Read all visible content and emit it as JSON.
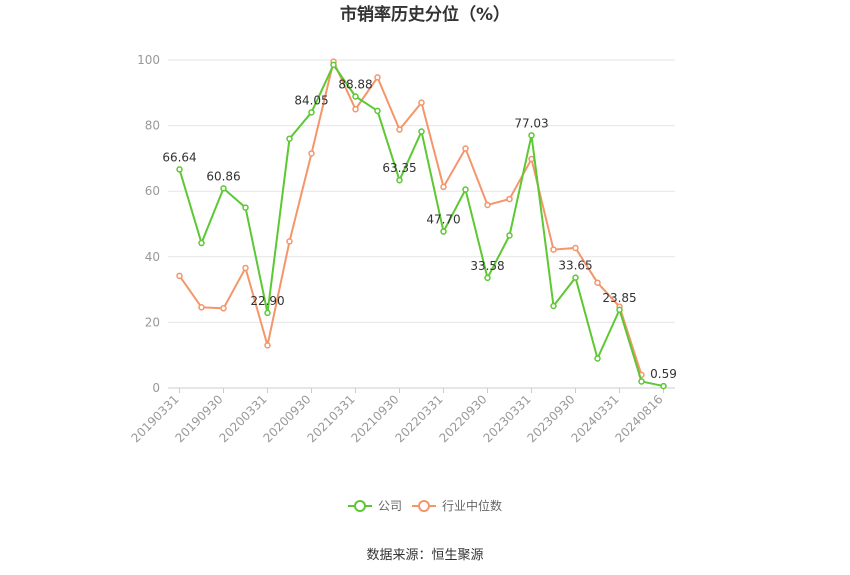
{
  "chart_data": {
    "type": "line",
    "title": "市销率历史分位（%）",
    "xlabel": "",
    "ylabel": "",
    "ylim": [
      0,
      100
    ],
    "yticks": [
      0,
      20,
      40,
      60,
      80,
      100
    ],
    "grid": true,
    "legend_position": "bottom",
    "x": [
      "20190331",
      "20190630",
      "20190930",
      "20191231",
      "20200331",
      "20200630",
      "20200930",
      "20201231",
      "20210331",
      "20210630",
      "20210930",
      "20211231",
      "20220331",
      "20220630",
      "20220930",
      "20221231",
      "20230331",
      "20230630",
      "20230930",
      "20231231",
      "20240331",
      "20240630",
      "20240816"
    ],
    "xtick_labels": [
      "20190331",
      "20190930",
      "20200331",
      "20200930",
      "20210331",
      "20210930",
      "20220331",
      "20220930",
      "20230331",
      "20230930",
      "20240331",
      "20240816"
    ],
    "series": [
      {
        "name": "公司",
        "color": "#5cc832",
        "values": [
          66.64,
          44.2,
          60.86,
          55.0,
          22.9,
          76.0,
          84.05,
          98.5,
          88.88,
          84.5,
          63.35,
          78.2,
          47.7,
          60.5,
          33.58,
          46.5,
          77.03,
          25.0,
          33.65,
          9.0,
          23.85,
          2.0,
          0.59
        ]
      },
      {
        "name": "行业中位数",
        "color": "#f5956a",
        "values": [
          34.2,
          24.6,
          24.3,
          36.6,
          13.0,
          44.7,
          71.5,
          99.5,
          85.0,
          94.7,
          78.8,
          87.0,
          61.3,
          73.0,
          55.8,
          57.6,
          69.8,
          42.2,
          42.7,
          32.1,
          24.8,
          4.0,
          null
        ]
      }
    ],
    "data_labels": [
      {
        "index": 0,
        "text": "66.64"
      },
      {
        "index": 2,
        "text": "60.86"
      },
      {
        "index": 4,
        "text": "22.90"
      },
      {
        "index": 6,
        "text": "84.05"
      },
      {
        "index": 8,
        "text": "88.88"
      },
      {
        "index": 10,
        "text": "63.35"
      },
      {
        "index": 12,
        "text": "47.70"
      },
      {
        "index": 14,
        "text": "33.58"
      },
      {
        "index": 16,
        "text": "77.03"
      },
      {
        "index": 18,
        "text": "33.65"
      },
      {
        "index": 20,
        "text": "23.85"
      },
      {
        "index": 22,
        "text": "0.59"
      }
    ]
  },
  "legend": {
    "company": "公司",
    "industry": "行业中位数"
  },
  "source": "数据来源：恒生聚源"
}
